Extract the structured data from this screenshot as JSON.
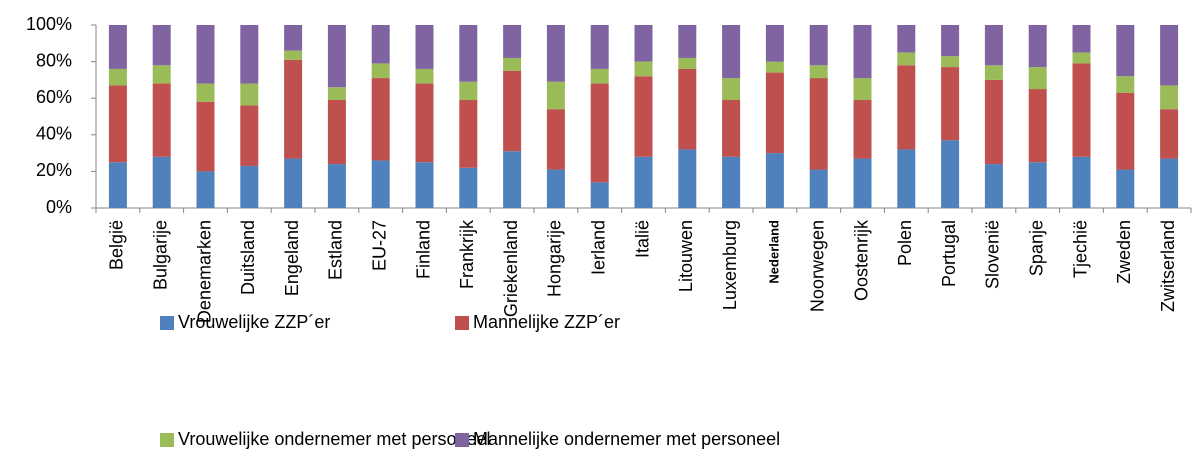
{
  "chart_data": {
    "type": "stacked_bar",
    "categories": [
      "België",
      "Bulgarije",
      "Denemarken",
      "Duitsland",
      "Engeland",
      "Estland",
      "EU-27",
      "Finland",
      "Frankrijk",
      "Griekenland",
      "Hongarije",
      "Ierland",
      "Italië",
      "Litouwen",
      "Luxemburg",
      "Nederland",
      "Noorwegen",
      "Oostenrijk",
      "Polen",
      "Portugal",
      "Slovenië",
      "Spanje",
      "Tjechië",
      "Zweden",
      "Zwitserland"
    ],
    "series": [
      {
        "name": "Vrouwelijke ZZP´er",
        "color": "#4f81bd",
        "values": [
          25,
          28,
          20,
          23,
          27,
          24,
          26,
          25,
          22,
          31,
          21,
          14,
          28,
          32,
          28,
          30,
          21,
          27,
          32,
          37,
          24,
          25,
          28,
          21,
          27
        ]
      },
      {
        "name": "Mannelijke ZZP´er",
        "color": "#c0504d",
        "values": [
          42,
          40,
          38,
          33,
          54,
          35,
          45,
          43,
          37,
          44,
          33,
          54,
          44,
          44,
          31,
          44,
          50,
          32,
          46,
          40,
          46,
          40,
          51,
          42,
          27
        ]
      },
      {
        "name": "Vrouwelijke ondernemer met personeel",
        "color": "#9bbb59",
        "values": [
          9,
          10,
          10,
          12,
          5,
          7,
          8,
          8,
          10,
          7,
          15,
          8,
          8,
          6,
          12,
          6,
          7,
          12,
          7,
          6,
          8,
          12,
          6,
          9,
          13
        ]
      },
      {
        "name": "Mannelijke ondernemer met personeel",
        "color": "#8064a2",
        "values": [
          24,
          22,
          32,
          32,
          14,
          34,
          21,
          24,
          31,
          18,
          31,
          24,
          20,
          18,
          29,
          20,
          22,
          29,
          15,
          17,
          22,
          23,
          15,
          28,
          33
        ]
      }
    ],
    "ylim": [
      0,
      100
    ],
    "yticks": [
      {
        "value": 0,
        "label": "0%"
      },
      {
        "value": 20,
        "label": "20%"
      },
      {
        "value": 40,
        "label": "40%"
      },
      {
        "value": 60,
        "label": "60%"
      },
      {
        "value": 80,
        "label": "80%"
      },
      {
        "value": 100,
        "label": "100%"
      }
    ],
    "grid": false
  }
}
